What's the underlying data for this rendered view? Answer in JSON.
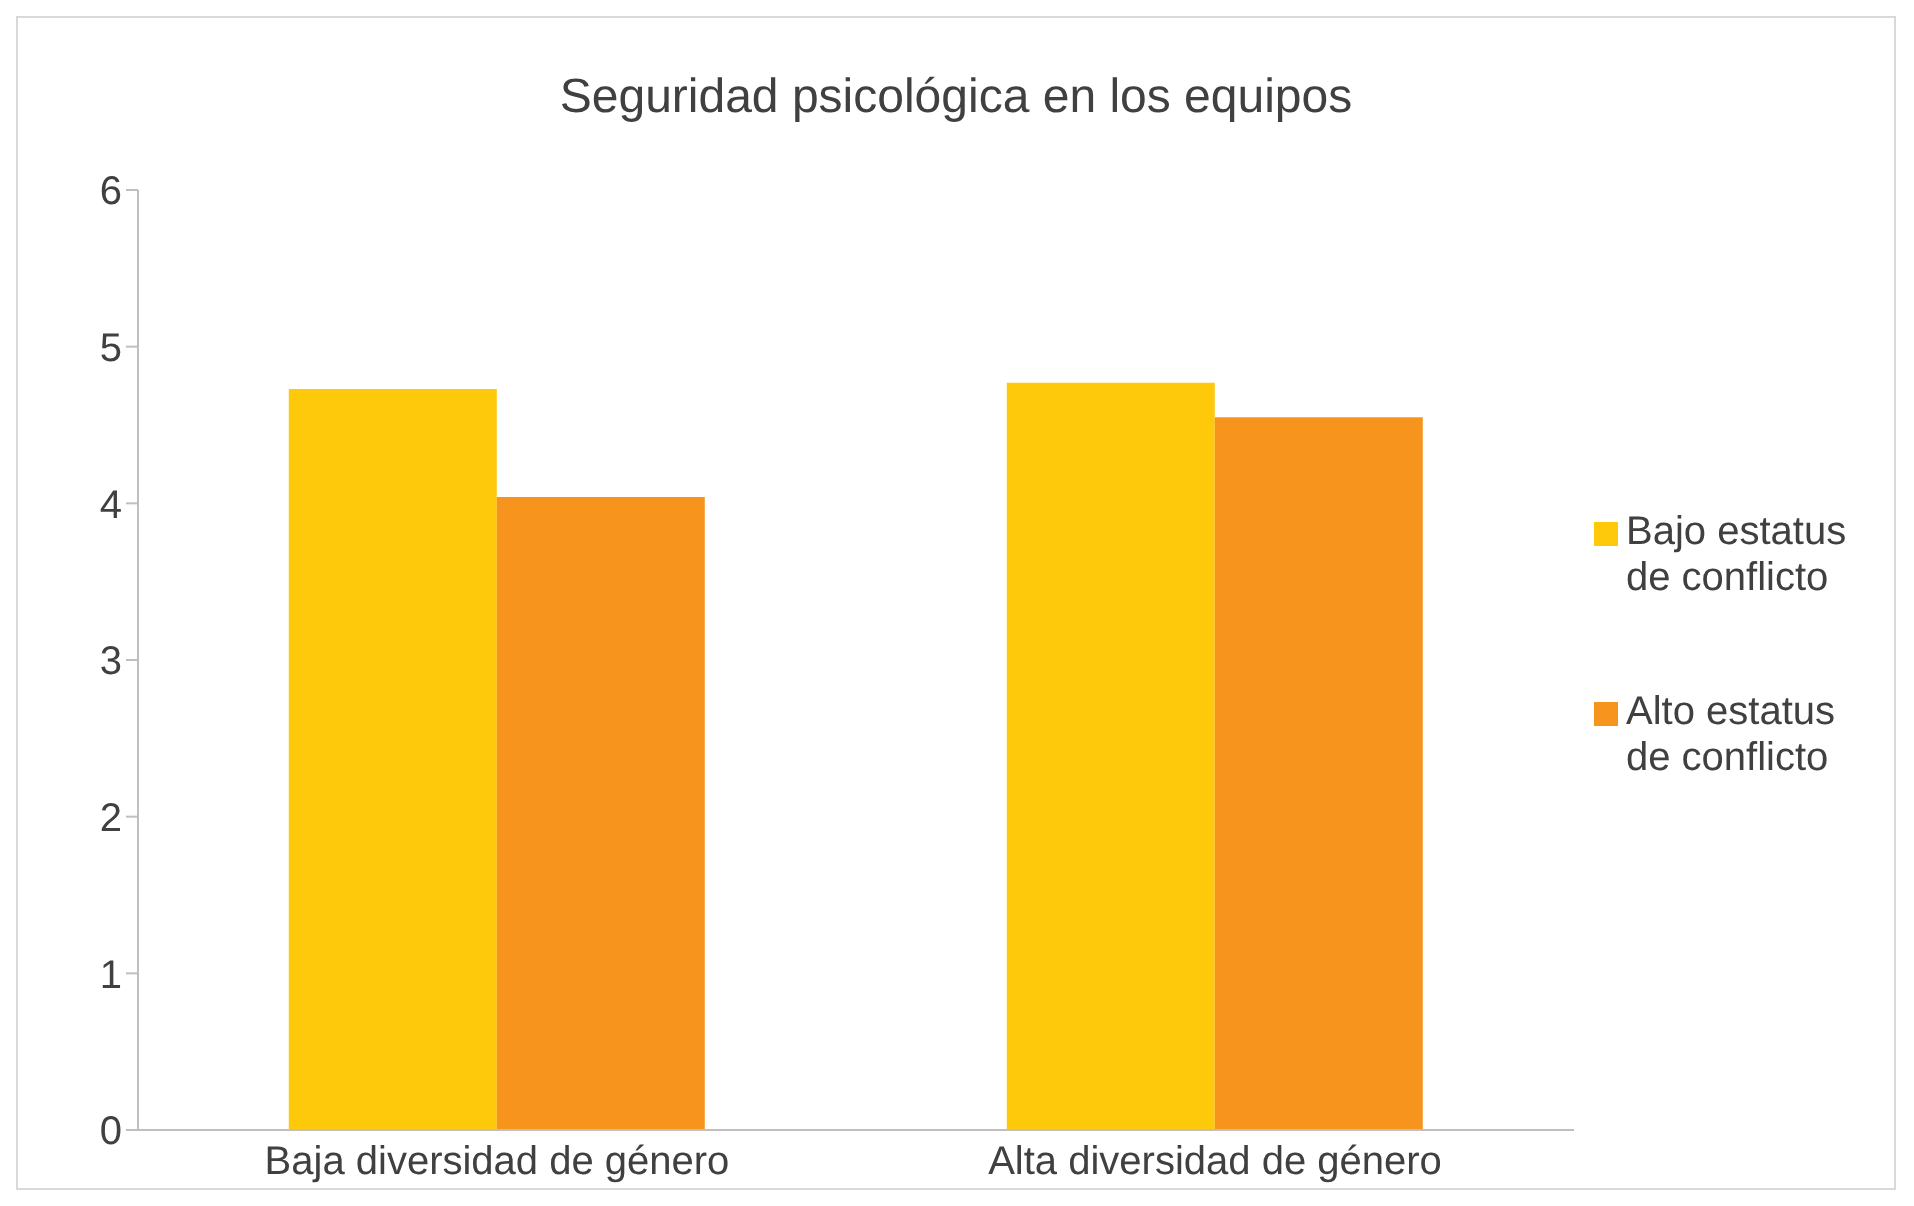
{
  "chart_data": {
    "type": "bar",
    "title": "Seguridad psicológica en los equipos",
    "categories": [
      "Baja diversidad de género",
      "Alta diversidad de género"
    ],
    "series": [
      {
        "name": "Bajo estatus de conflicto",
        "color": "#fec90a",
        "values": [
          4.73,
          4.77
        ]
      },
      {
        "name": "Alto estatus de conflicto",
        "color": "#f7941d",
        "values": [
          4.04,
          4.55
        ]
      }
    ],
    "ylim": [
      0,
      6
    ],
    "yticks": [
      0,
      1,
      2,
      3,
      4,
      5,
      6
    ],
    "grid": false,
    "legend": "right"
  }
}
